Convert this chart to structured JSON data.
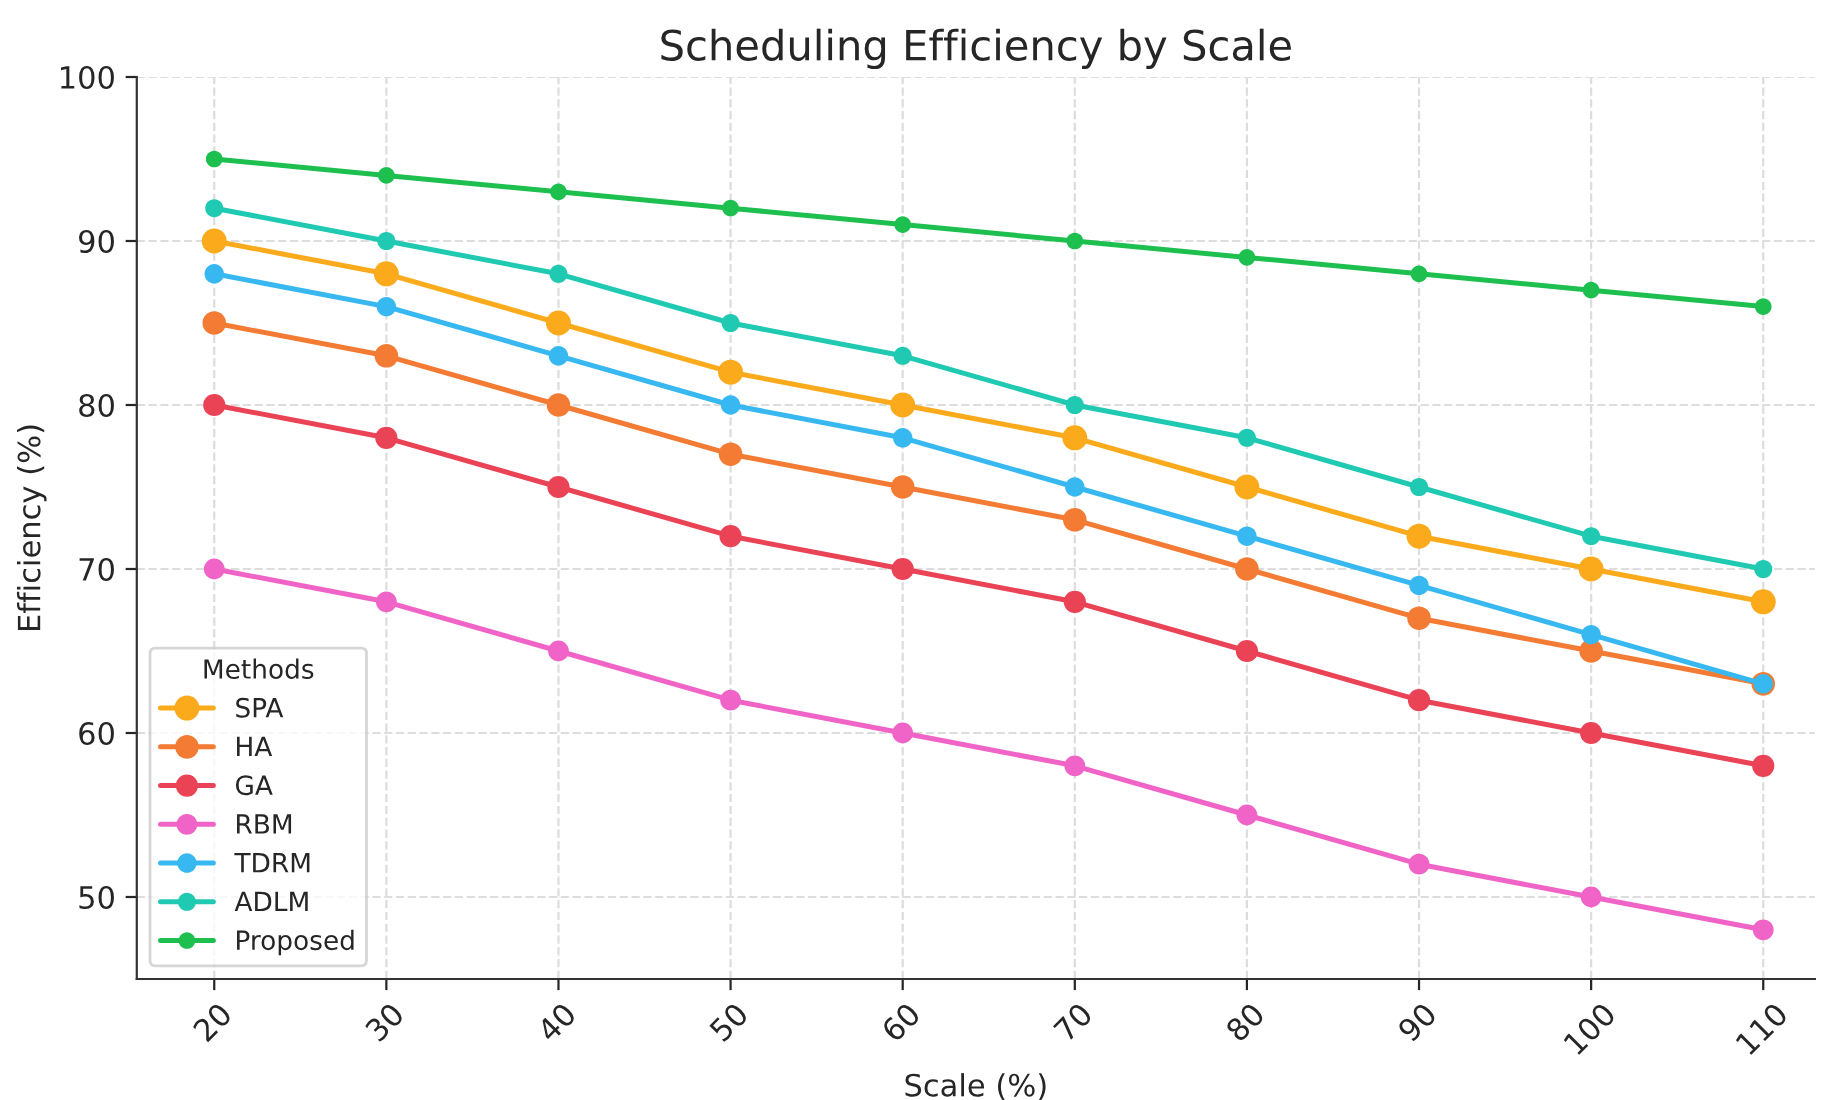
{
  "chart_data": {
    "type": "line",
    "title": "Scheduling Efficiency by Scale",
    "xlabel": "Scale (%)",
    "ylabel": "Efficiency (%)",
    "legend_title": "Methods",
    "x": [
      20,
      30,
      40,
      50,
      60,
      70,
      80,
      90,
      100,
      110
    ],
    "series": [
      {
        "name": "SPA",
        "color": "#fbaa1b",
        "values": [
          90,
          88,
          85,
          82,
          80,
          78,
          75,
          72,
          70,
          68
        ]
      },
      {
        "name": "HA",
        "color": "#f37b33",
        "values": [
          85,
          83,
          80,
          77,
          75,
          73,
          70,
          67,
          65,
          63
        ]
      },
      {
        "name": "GA",
        "color": "#ea4356",
        "values": [
          80,
          78,
          75,
          72,
          70,
          68,
          65,
          62,
          60,
          58
        ]
      },
      {
        "name": "RBM",
        "color": "#f064c8",
        "values": [
          70,
          68,
          65,
          62,
          60,
          58,
          55,
          52,
          50,
          48
        ]
      },
      {
        "name": "TDRM",
        "color": "#38b8f0",
        "values": [
          88,
          86,
          83,
          80,
          78,
          75,
          72,
          69,
          66,
          63
        ]
      },
      {
        "name": "ADLM",
        "color": "#20c9b2",
        "values": [
          92,
          90,
          88,
          85,
          83,
          80,
          78,
          75,
          72,
          70
        ]
      },
      {
        "name": "Proposed",
        "color": "#1dbf4f",
        "values": [
          95,
          94,
          93,
          92,
          91,
          90,
          89,
          88,
          87,
          86
        ]
      }
    ],
    "xlim": [
      15.5,
      113
    ],
    "ylim": [
      45,
      100
    ],
    "xticks": [
      20,
      30,
      40,
      50,
      60,
      70,
      80,
      90,
      100,
      110
    ],
    "yticks": [
      50,
      60,
      70,
      80,
      90,
      100
    ],
    "grid": true,
    "legend": "bottom left",
    "marker": "circle",
    "line_style": "solid"
  }
}
